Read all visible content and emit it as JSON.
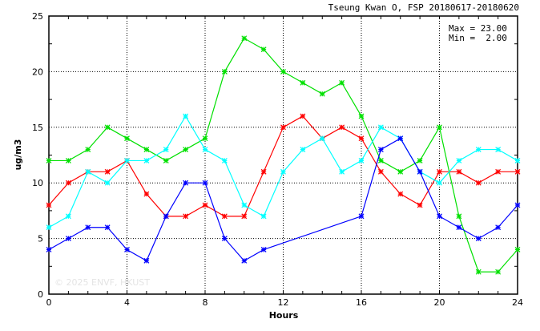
{
  "chart_data": {
    "type": "line",
    "title": "Tseung Kwan O, FSP 20180617-20180620",
    "xlabel": "Hours",
    "ylabel": "ug/m3",
    "xlim": [
      0,
      24
    ],
    "ylim": [
      0,
      25
    ],
    "xticks": [
      0,
      4,
      8,
      12,
      16,
      20,
      24
    ],
    "yticks": [
      0,
      5,
      10,
      15,
      20,
      25
    ],
    "grid": true,
    "annotations": {
      "max": "Max = 23.00",
      "min": "Min =  2.00"
    },
    "watermark": "© 2025 ENVF, HKUST",
    "x": [
      0,
      1,
      2,
      3,
      4,
      5,
      6,
      7,
      8,
      9,
      10,
      11,
      12,
      13,
      14,
      15,
      16,
      17,
      18,
      19,
      20,
      21,
      22,
      23,
      24
    ],
    "series": [
      {
        "name": "green",
        "color": "#00e000",
        "values": [
          12,
          12,
          13,
          15,
          14,
          13,
          12,
          13,
          14,
          20,
          23,
          22,
          20,
          19,
          18,
          19,
          16,
          12,
          11,
          12,
          15,
          7,
          2,
          2,
          4
        ]
      },
      {
        "name": "red",
        "color": "#ff0000",
        "values": [
          8,
          10,
          11,
          11,
          12,
          9,
          7,
          7,
          8,
          7,
          7,
          11,
          15,
          16,
          14,
          15,
          14,
          11,
          9,
          8,
          11,
          11,
          10,
          11,
          11
        ]
      },
      {
        "name": "cyan",
        "color": "#00ffff",
        "values": [
          6,
          7,
          11,
          10,
          12,
          12,
          13,
          16,
          13,
          12,
          8,
          7,
          11,
          13,
          14,
          11,
          12,
          15,
          14,
          11,
          10,
          12,
          13,
          13,
          12
        ]
      },
      {
        "name": "blue",
        "color": "#0000ff",
        "values": [
          4,
          5,
          6,
          6,
          4,
          3,
          7,
          10,
          10,
          5,
          3,
          4,
          null,
          null,
          null,
          null,
          7,
          13,
          14,
          11,
          7,
          6,
          5,
          6,
          8
        ]
      }
    ]
  }
}
